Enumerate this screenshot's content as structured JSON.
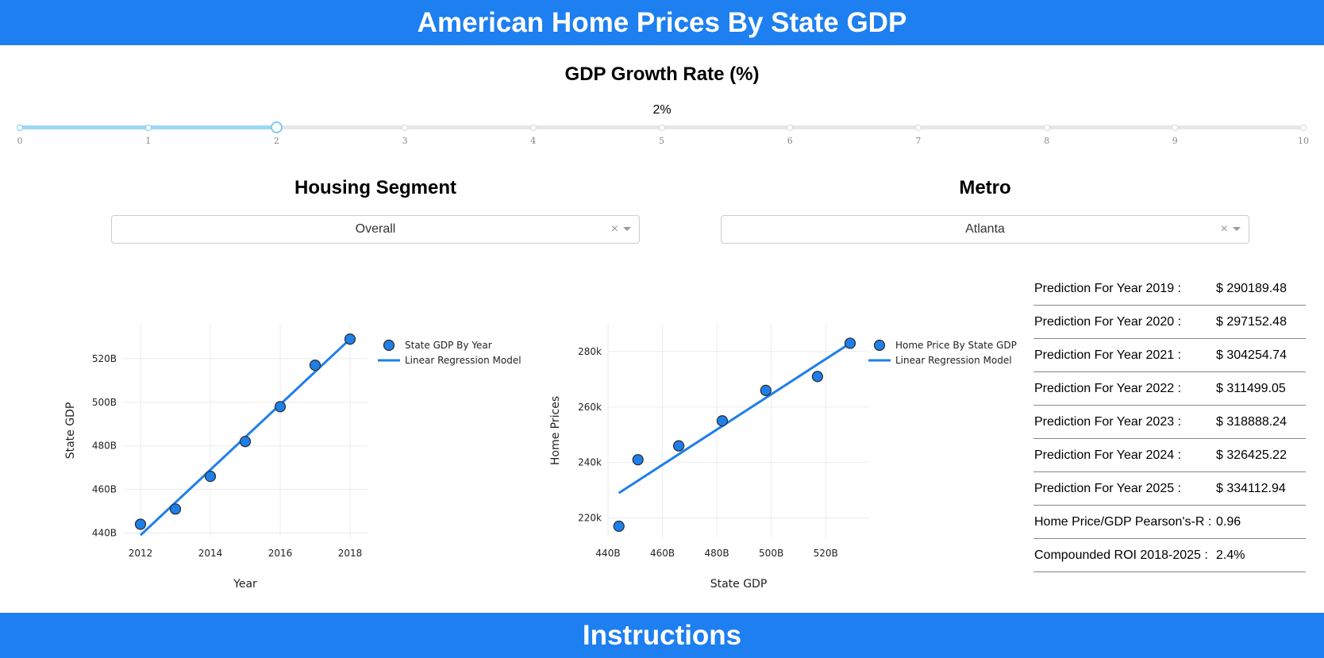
{
  "header": {
    "title": "American Home Prices By State GDP"
  },
  "gdp_growth": {
    "title": "GDP Growth Rate (%)",
    "value_label": "2%",
    "value": 2,
    "min": 0,
    "max": 10,
    "marks": [
      "0",
      "1",
      "2",
      "3",
      "4",
      "5",
      "6",
      "7",
      "8",
      "9",
      "10"
    ]
  },
  "housing_segment": {
    "title": "Housing Segment",
    "selected": "Overall",
    "clear": "×"
  },
  "metro": {
    "title": "Metro",
    "selected": "Atlanta",
    "clear": "×"
  },
  "colors": {
    "accent": "#1e7ff0",
    "marker": "#1f7fe8",
    "marker_outline": "#2a2a2a",
    "slider": "#9ad8f5"
  },
  "chart_data": [
    {
      "type": "scatter",
      "title": "",
      "xlabel": "Year",
      "ylabel": "State GDP",
      "x_ticks": [
        "2012",
        "2014",
        "2016",
        "2018"
      ],
      "x_tick_values": [
        2012,
        2014,
        2016,
        2018
      ],
      "y_ticks": [
        "440B",
        "460B",
        "480B",
        "500B",
        "520B"
      ],
      "y_tick_values": [
        440,
        460,
        480,
        500,
        520
      ],
      "xlim": [
        2011.5,
        2018.5
      ],
      "ylim": [
        438,
        536
      ],
      "grid": true,
      "legend_position": "top-right",
      "series": [
        {
          "name": "State GDP By Year",
          "mode": "markers",
          "x": [
            2012,
            2013,
            2014,
            2015,
            2016,
            2017,
            2018
          ],
          "y": [
            444,
            451,
            466,
            482,
            498,
            517,
            529
          ]
        },
        {
          "name": "Linear Regression Model",
          "mode": "line",
          "x": [
            2012,
            2018
          ],
          "y": [
            439,
            529
          ]
        }
      ]
    },
    {
      "type": "scatter",
      "title": "",
      "xlabel": "State GDP",
      "ylabel": "Home Prices",
      "x_ticks": [
        "440B",
        "460B",
        "480B",
        "500B",
        "520B"
      ],
      "x_tick_values": [
        440,
        460,
        480,
        500,
        520
      ],
      "y_ticks": [
        "220k",
        "240k",
        "260k",
        "280k"
      ],
      "y_tick_values": [
        220,
        240,
        260,
        280
      ],
      "xlim": [
        440,
        536
      ],
      "ylim": [
        213,
        290
      ],
      "grid": true,
      "legend_position": "top-right",
      "series": [
        {
          "name": "Home Price By State GDP",
          "mode": "markers",
          "x": [
            444,
            451,
            466,
            482,
            498,
            517,
            529
          ],
          "y": [
            217,
            241,
            246,
            255,
            266,
            271,
            283
          ]
        },
        {
          "name": "Linear Regression Model",
          "mode": "line",
          "x": [
            444,
            529
          ],
          "y": [
            229,
            283
          ]
        }
      ]
    }
  ],
  "predictions": [
    {
      "label": "Prediction For Year 2019 :",
      "value": "$ 290189.48"
    },
    {
      "label": "Prediction For Year 2020 :",
      "value": "$ 297152.48"
    },
    {
      "label": "Prediction For Year 2021 :",
      "value": "$ 304254.74"
    },
    {
      "label": "Prediction For Year 2022 :",
      "value": "$ 311499.05"
    },
    {
      "label": "Prediction For Year 2023 :",
      "value": "$ 318888.24"
    },
    {
      "label": "Prediction For Year 2024 :",
      "value": "$ 326425.22"
    },
    {
      "label": "Prediction For Year 2025 :",
      "value": "$ 334112.94"
    },
    {
      "label": "Home Price/GDP Pearson's-R :",
      "value": "0.96"
    },
    {
      "label": "Compounded ROI 2018-2025 :",
      "value": "2.4%"
    }
  ],
  "footer": {
    "title": "Instructions"
  }
}
